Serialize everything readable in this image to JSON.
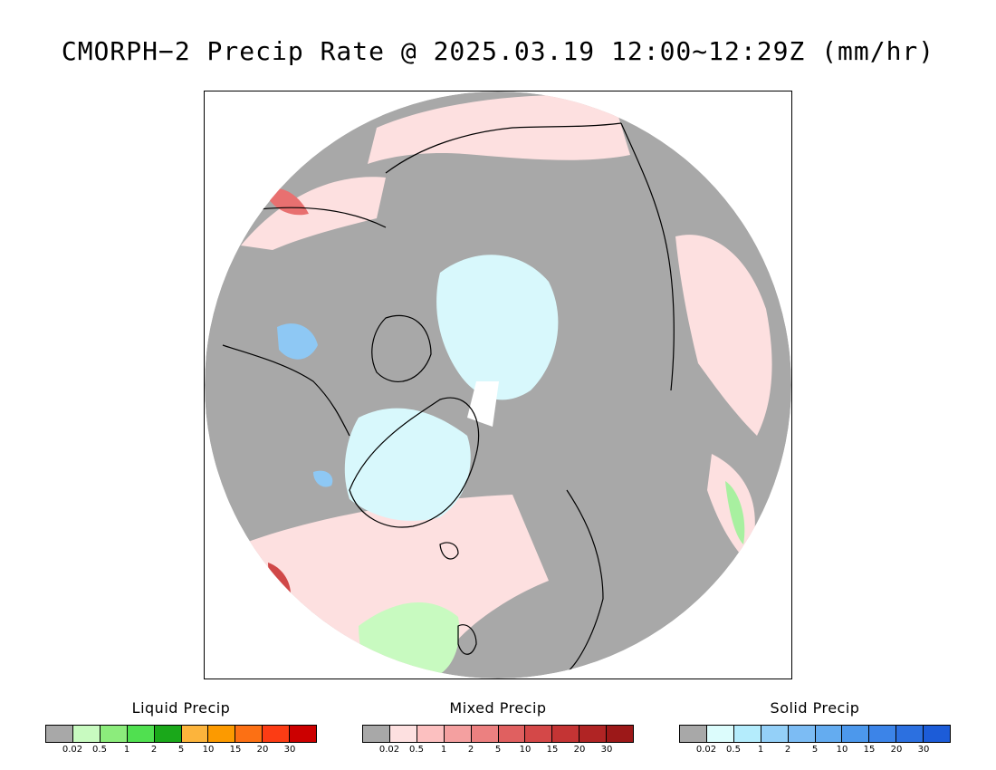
{
  "title": "CMORPH−2 Precip Rate @ 2025.03.19 12:00~12:29Z (mm/hr)",
  "map": {
    "projection": "polar stereographic (north pole)",
    "colors": {
      "no_precip": "#a8a8a8",
      "coast": "#000000",
      "light_pink": "#fde0e0",
      "light_cyan": "#d8f8fc",
      "light_green": "#c8fac0",
      "blue": "#8ec8f4",
      "red": "#e87070",
      "dark_red": "#d04848",
      "green": "#a8f0a0",
      "missing": "#ffffff"
    }
  },
  "legends": [
    {
      "id": "liquid",
      "title": "Liquid Precip",
      "swatches": [
        "#a8a8a8",
        "#c8fac0",
        "#8cec7c",
        "#50e050",
        "#1aa81a",
        "#fcb43c",
        "#fc9a00",
        "#fc7014",
        "#fc3c14",
        "#cc0000"
      ],
      "ticks": [
        "0.02",
        "0.5",
        "1",
        "2",
        "5",
        "10",
        "15",
        "20",
        "30"
      ]
    },
    {
      "id": "mixed",
      "title": "Mixed Precip",
      "swatches": [
        "#a8a8a8",
        "#fde0e0",
        "#fcc0c0",
        "#f4a0a0",
        "#ec8080",
        "#e06060",
        "#d44848",
        "#c43434",
        "#b02424",
        "#9c1818"
      ],
      "ticks": [
        "0.02",
        "0.5",
        "1",
        "2",
        "5",
        "10",
        "15",
        "20",
        "30"
      ]
    },
    {
      "id": "solid",
      "title": "Solid Precip",
      "swatches": [
        "#a8a8a8",
        "#dcfcfc",
        "#b4ecfc",
        "#94d0f8",
        "#7cbcf4",
        "#64acf0",
        "#4c98ec",
        "#3c84e8",
        "#2c70e0",
        "#1c5cd8"
      ],
      "ticks": [
        "0.02",
        "0.5",
        "1",
        "2",
        "5",
        "10",
        "15",
        "20",
        "30"
      ]
    }
  ]
}
